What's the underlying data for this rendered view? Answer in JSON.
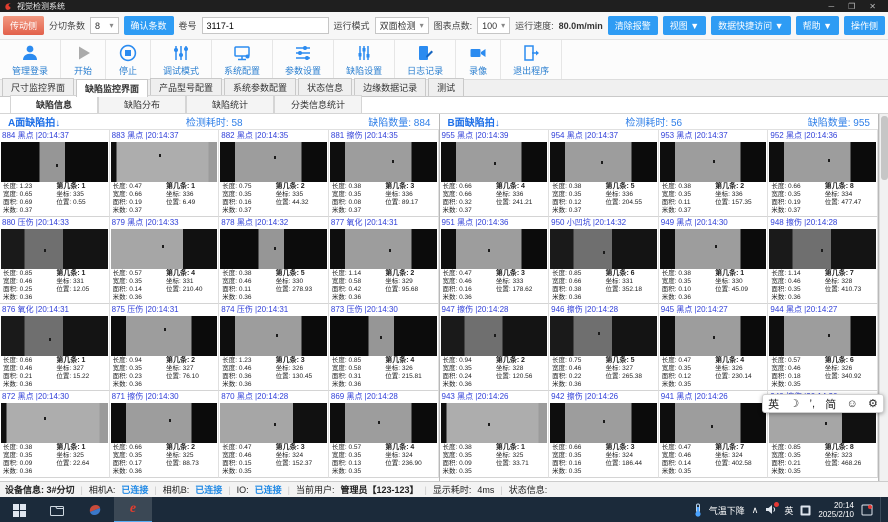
{
  "window": {
    "title": "视觉检测系统",
    "minimize": "─",
    "maximize": "❐",
    "close": "✕"
  },
  "toolbar1": {
    "side_left": "传动侧",
    "split_label": "分切条数",
    "split_value": "8",
    "confirm_button": "确认条数",
    "roll_label": "卷号",
    "roll_value": "3117-1",
    "mode_label": "运行模式",
    "mode_value": "双面检测",
    "points_label": "图表点数:",
    "points_value": "100",
    "speed_label": "运行速度:",
    "speed_value": "80.0m/min",
    "clear_alarm": "清除报警",
    "view_menu": "视图 ▼",
    "data_menu": "数据快捷访问 ▼",
    "help_menu": "帮助 ▼",
    "side_right": "操作侧"
  },
  "toolbar2": {
    "buttons": [
      {
        "label": "管理登录"
      },
      {
        "label": "开始"
      },
      {
        "label": "停止"
      },
      {
        "label": "调试模式"
      },
      {
        "label": "系统配置"
      },
      {
        "label": "参数设置"
      },
      {
        "label": "缺陷设置"
      },
      {
        "label": "日志记录"
      },
      {
        "label": "录像"
      },
      {
        "label": "退出程序"
      }
    ]
  },
  "tabs": {
    "items": [
      "尺寸监控界面",
      "缺陷监控界面",
      "产品型号配置",
      "系统参数配置",
      "状态信息",
      "边缘数据记录",
      "测试"
    ],
    "active": 1
  },
  "subtabs": {
    "items": [
      "缺陷信息",
      "缺陷分布",
      "缺陷统计",
      "分类信息统计"
    ],
    "active": 0
  },
  "cell_labels": {
    "ln": "长度:",
    "wd": "宽度:",
    "ar": "面积:",
    "mt": "米数:",
    "st": "第几条:",
    "co": "坐标:",
    "ps": "位置:"
  },
  "panels": [
    {
      "title": "A面缺陷拍↓",
      "elapsed_label": "检测耗时:",
      "elapsed": "58",
      "count_label": "缺陷数量:",
      "count": "884",
      "cells": [
        {
          "id": "884",
          "ty": "黑点",
          "tm": "20:14:37",
          "ln": "1.23",
          "wd": "0.65",
          "ar": "0.69",
          "mt": "0.37",
          "st": "1",
          "co": "335",
          "ps": "0.55",
          "img": "v1",
          "sx": "52%",
          "sy": "55%"
        },
        {
          "id": "883",
          "ty": "黑点",
          "tm": "20:14:37",
          "ln": "0.47",
          "wd": "0.66",
          "ar": "0.19",
          "mt": "0.37",
          "st": "1",
          "co": "336",
          "ps": "6.49",
          "img": "v2",
          "sx": "45%",
          "sy": "30%"
        },
        {
          "id": "882",
          "ty": "黑点",
          "tm": "20:14:35",
          "ln": "0.75",
          "wd": "0.35",
          "ar": "0.16",
          "mt": "0.37",
          "st": "2",
          "co": "335",
          "ps": "44.32",
          "img": "v3",
          "sx": "50%",
          "sy": "35%"
        },
        {
          "id": "881",
          "ty": "擦伤",
          "tm": "20:14:35",
          "ln": "0.38",
          "wd": "0.35",
          "ar": "0.08",
          "mt": "0.37",
          "st": "3",
          "co": "336",
          "ps": "89.17",
          "img": "v3",
          "sx": "58%",
          "sy": "45%"
        },
        {
          "id": "880",
          "ty": "压伤",
          "tm": "20:14:33",
          "ln": "0.85",
          "wd": "0.46",
          "ar": "0.25",
          "mt": "0.36",
          "st": "1",
          "co": "331",
          "ps": "12.05",
          "img": "v5",
          "sx": "40%",
          "sy": "50%"
        },
        {
          "id": "879",
          "ty": "黑点",
          "tm": "20:14:33",
          "ln": "0.57",
          "wd": "0.35",
          "ar": "0.14",
          "mt": "0.36",
          "st": "4",
          "co": "331",
          "ps": "210.40",
          "img": "v4",
          "sx": "48%",
          "sy": "40%"
        },
        {
          "id": "878",
          "ty": "黑点",
          "tm": "20:14:32",
          "ln": "0.38",
          "wd": "0.46",
          "ar": "0.11",
          "mt": "0.36",
          "st": "5",
          "co": "330",
          "ps": "278.93",
          "img": "v1",
          "sx": "50%",
          "sy": "45%"
        },
        {
          "id": "877",
          "ty": "氧化",
          "tm": "20:14:31",
          "ln": "1.14",
          "wd": "0.58",
          "ar": "0.42",
          "mt": "0.36",
          "st": "2",
          "co": "329",
          "ps": "95.68",
          "img": "v3",
          "sx": "55%",
          "sy": "50%"
        },
        {
          "id": "876",
          "ty": "氧化",
          "tm": "20:14:31",
          "ln": "0.66",
          "wd": "0.46",
          "ar": "0.21",
          "mt": "0.36",
          "st": "1",
          "co": "327",
          "ps": "15.22",
          "img": "v5",
          "sx": "45%",
          "sy": "55%"
        },
        {
          "id": "875",
          "ty": "压伤",
          "tm": "20:14:31",
          "ln": "0.94",
          "wd": "0.35",
          "ar": "0.23",
          "mt": "0.36",
          "st": "2",
          "co": "327",
          "ps": "76.10",
          "img": "v3",
          "sx": "50%",
          "sy": "30%"
        },
        {
          "id": "874",
          "ty": "压伤",
          "tm": "20:14:31",
          "ln": "1.23",
          "wd": "0.46",
          "ar": "0.36",
          "mt": "0.36",
          "st": "3",
          "co": "326",
          "ps": "130.45",
          "img": "v3",
          "sx": "52%",
          "sy": "45%"
        },
        {
          "id": "873",
          "ty": "压伤",
          "tm": "20:14:30",
          "ln": "0.85",
          "wd": "0.58",
          "ar": "0.31",
          "mt": "0.36",
          "st": "4",
          "co": "326",
          "ps": "215.81",
          "img": "v1",
          "sx": "47%",
          "sy": "50%"
        },
        {
          "id": "872",
          "ty": "黑点",
          "tm": "20:14:30",
          "ln": "0.38",
          "wd": "0.35",
          "ar": "0.09",
          "mt": "0.36",
          "st": "1",
          "co": "325",
          "ps": "22.64",
          "img": "v2",
          "sx": "40%",
          "sy": "35%"
        },
        {
          "id": "871",
          "ty": "擦伤",
          "tm": "20:14:30",
          "ln": "0.66",
          "wd": "0.35",
          "ar": "0.17",
          "mt": "0.36",
          "st": "2",
          "co": "325",
          "ps": "88.73",
          "img": "v3",
          "sx": "55%",
          "sy": "40%"
        },
        {
          "id": "870",
          "ty": "黑点",
          "tm": "20:14:28",
          "ln": "0.47",
          "wd": "0.46",
          "ar": "0.15",
          "mt": "0.35",
          "st": "3",
          "co": "324",
          "ps": "152.37",
          "img": "v4",
          "sx": "50%",
          "sy": "50%"
        },
        {
          "id": "869",
          "ty": "黑点",
          "tm": "20:14:28",
          "ln": "0.57",
          "wd": "0.35",
          "ar": "0.13",
          "mt": "0.35",
          "st": "4",
          "co": "324",
          "ps": "236.90",
          "img": "v3",
          "sx": "45%",
          "sy": "45%"
        }
      ]
    },
    {
      "title": "B面缺陷拍↓",
      "elapsed_label": "检测耗时:",
      "elapsed": "56",
      "count_label": "缺陷数量:",
      "count": "955",
      "cells": [
        {
          "id": "955",
          "ty": "黑点",
          "tm": "20:14:39",
          "ln": "0.66",
          "wd": "0.66",
          "ar": "0.32",
          "mt": "0.37",
          "st": "4",
          "co": "336",
          "ps": "241.21",
          "img": "v3",
          "sx": "50%",
          "sy": "50%"
        },
        {
          "id": "954",
          "ty": "黑点",
          "tm": "20:14:37",
          "ln": "0.38",
          "wd": "0.35",
          "ar": "0.12",
          "mt": "0.37",
          "st": "5",
          "co": "336",
          "ps": "204.55",
          "img": "v3",
          "sx": "48%",
          "sy": "48%"
        },
        {
          "id": "953",
          "ty": "黑点",
          "tm": "20:14:37",
          "ln": "0.38",
          "wd": "0.35",
          "ar": "0.11",
          "mt": "0.37",
          "st": "2",
          "co": "336",
          "ps": "157.35",
          "img": "v3",
          "sx": "50%",
          "sy": "45%"
        },
        {
          "id": "952",
          "ty": "黑点",
          "tm": "20:14:36",
          "ln": "0.66",
          "wd": "0.35",
          "ar": "0.19",
          "mt": "0.37",
          "st": "8",
          "co": "334",
          "ps": "477.47",
          "img": "v3",
          "sx": "55%",
          "sy": "42%"
        },
        {
          "id": "951",
          "ty": "黑点",
          "tm": "20:14:36",
          "ln": "0.47",
          "wd": "0.46",
          "ar": "0.16",
          "mt": "0.36",
          "st": "3",
          "co": "333",
          "ps": "178.62",
          "img": "v3",
          "sx": "45%",
          "sy": "50%"
        },
        {
          "id": "950",
          "ty": "小凹坑",
          "tm": "20:14:32",
          "ln": "0.85",
          "wd": "0.66",
          "ar": "0.38",
          "mt": "0.36",
          "st": "6",
          "co": "331",
          "ps": "352.18",
          "img": "v5",
          "sx": "50%",
          "sy": "55%"
        },
        {
          "id": "949",
          "ty": "黑点",
          "tm": "20:14:30",
          "ln": "0.38",
          "wd": "0.35",
          "ar": "0.10",
          "mt": "0.36",
          "st": "1",
          "co": "330",
          "ps": "45.09",
          "img": "v3",
          "sx": "52%",
          "sy": "40%"
        },
        {
          "id": "948",
          "ty": "擦伤",
          "tm": "20:14:28",
          "ln": "1.14",
          "wd": "0.46",
          "ar": "0.35",
          "mt": "0.36",
          "st": "7",
          "co": "328",
          "ps": "410.73",
          "img": "v5",
          "sx": "48%",
          "sy": "50%"
        },
        {
          "id": "947",
          "ty": "擦伤",
          "tm": "20:14:28",
          "ln": "0.94",
          "wd": "0.35",
          "ar": "0.24",
          "mt": "0.36",
          "st": "2",
          "co": "328",
          "ps": "120.56",
          "img": "v5",
          "sx": "50%",
          "sy": "45%"
        },
        {
          "id": "946",
          "ty": "擦伤",
          "tm": "20:14:28",
          "ln": "0.75",
          "wd": "0.46",
          "ar": "0.22",
          "mt": "0.36",
          "st": "5",
          "co": "327",
          "ps": "265.38",
          "img": "v5",
          "sx": "45%",
          "sy": "40%"
        },
        {
          "id": "945",
          "ty": "黑点",
          "tm": "20:14:27",
          "ln": "0.47",
          "wd": "0.35",
          "ar": "0.12",
          "mt": "0.35",
          "st": "4",
          "co": "326",
          "ps": "230.14",
          "img": "v3",
          "sx": "50%",
          "sy": "50%"
        },
        {
          "id": "944",
          "ty": "黑点",
          "tm": "20:14:27",
          "ln": "0.57",
          "wd": "0.46",
          "ar": "0.18",
          "mt": "0.35",
          "st": "6",
          "co": "326",
          "ps": "340.92",
          "img": "v3",
          "sx": "55%",
          "sy": "45%"
        },
        {
          "id": "943",
          "ty": "黑点",
          "tm": "20:14:26",
          "ln": "0.38",
          "wd": "0.35",
          "ar": "0.09",
          "mt": "0.35",
          "st": "1",
          "co": "325",
          "ps": "33.71",
          "img": "v2",
          "sx": "45%",
          "sy": "50%"
        },
        {
          "id": "942",
          "ty": "擦伤",
          "tm": "20:14:26",
          "ln": "0.66",
          "wd": "0.35",
          "ar": "0.16",
          "mt": "0.35",
          "st": "3",
          "co": "324",
          "ps": "186.44",
          "img": "v3",
          "sx": "50%",
          "sy": "42%"
        },
        {
          "id": "941",
          "ty": "黑点",
          "tm": "20:14:26",
          "ln": "0.47",
          "wd": "0.46",
          "ar": "0.14",
          "mt": "0.35",
          "st": "7",
          "co": "324",
          "ps": "402.58",
          "img": "v3",
          "sx": "48%",
          "sy": "55%"
        },
        {
          "id": "940",
          "ty": "擦伤",
          "tm": "20:14:26",
          "ln": "0.85",
          "wd": "0.35",
          "ar": "0.21",
          "mt": "0.35",
          "st": "8",
          "co": "323",
          "ps": "468.26",
          "img": "v4",
          "sx": "52%",
          "sy": "48%"
        }
      ]
    }
  ],
  "statusbar": {
    "device": "设备信息: 3#分切",
    "camA_label": "相机A:",
    "camA": "已连接",
    "camB_label": "相机B:",
    "camB": "已连接",
    "io_label": "IO:",
    "io": "已连接",
    "user_label": "当前用户:",
    "user": "管理员【123-123】",
    "display_label": "显示耗时:",
    "display": "4ms",
    "status_label": "状态信息:"
  },
  "taskbar": {
    "weather": "气温下降",
    "chevron": "∧",
    "lang": "英",
    "time": "20:14",
    "date": "2025/2/10"
  },
  "ime": {
    "en": "英",
    "moon": "☽",
    "punct": "’,",
    "cn": "简",
    "emoji": "☺",
    "gear": "⚙"
  }
}
